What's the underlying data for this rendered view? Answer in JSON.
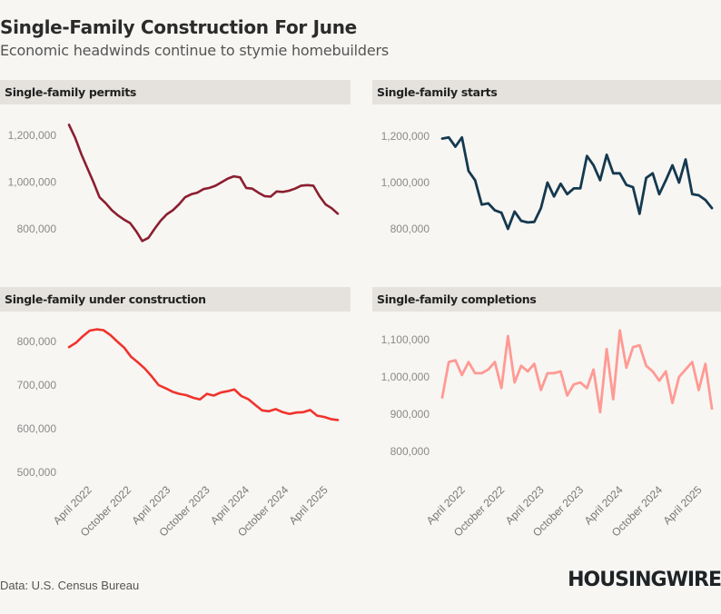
{
  "header": {
    "title": "Single-Family Construction For June",
    "subtitle": "Economic headwinds continue to stymie homebuilders"
  },
  "footer": {
    "source": "Data: U.S. Census Bureau",
    "brand": "HOUSINGWIRE"
  },
  "colors": {
    "background": "#f7f6f3",
    "panel_header": "#e5e2dd",
    "permits": "#8b1e2f",
    "starts": "#15394f",
    "under_construction": "#f0332c",
    "completions": "#ff9a94"
  },
  "chart_data": [
    {
      "id": "permits",
      "type": "line",
      "title": "Single-family permits",
      "xlabel": "",
      "ylabel": "",
      "x_start": "January 2022",
      "x_end": "June 2025",
      "frequency": "monthly",
      "x_tick_labels": [
        "April 2022",
        "October 2022",
        "April 2023",
        "October 2023",
        "April 2024",
        "October 2024",
        "April 2025"
      ],
      "y_tick_labels": [
        "1,200,000",
        "1,000,000",
        "800,000"
      ],
      "yticks": [
        1200000,
        1000000,
        800000
      ],
      "ylim": [
        720000,
        1260000
      ],
      "grid": false,
      "color": "#8b1e2f",
      "values": [
        1245000,
        1190000,
        1120000,
        1060000,
        1000000,
        935000,
        910000,
        880000,
        858000,
        840000,
        825000,
        790000,
        748000,
        762000,
        800000,
        835000,
        862000,
        880000,
        905000,
        935000,
        948000,
        955000,
        970000,
        975000,
        985000,
        1000000,
        1015000,
        1025000,
        1020000,
        975000,
        972000,
        955000,
        940000,
        938000,
        960000,
        958000,
        963000,
        972000,
        985000,
        987000,
        985000,
        940000,
        905000,
        888000,
        865000
      ]
    },
    {
      "id": "starts",
      "type": "line",
      "title": "Single-family starts",
      "xlabel": "",
      "ylabel": "",
      "x_start": "January 2022",
      "x_end": "June 2025",
      "frequency": "monthly",
      "x_tick_labels": [
        "April 2022",
        "October 2022",
        "April 2023",
        "October 2023",
        "April 2024",
        "October 2024",
        "April 2025"
      ],
      "y_tick_labels": [
        "1,200,000",
        "1,000,000",
        "800,000"
      ],
      "yticks": [
        1200000,
        1000000,
        800000
      ],
      "ylim": [
        720000,
        1260000
      ],
      "grid": false,
      "color": "#15394f",
      "values": [
        1190000,
        1195000,
        1155000,
        1195000,
        1050000,
        1010000,
        905000,
        910000,
        880000,
        870000,
        800000,
        875000,
        835000,
        828000,
        830000,
        890000,
        1000000,
        940000,
        995000,
        950000,
        975000,
        975000,
        1115000,
        1075000,
        1010000,
        1120000,
        1040000,
        1040000,
        990000,
        980000,
        865000,
        1020000,
        1040000,
        950000,
        1010000,
        1075000,
        1000000,
        1100000,
        950000,
        945000,
        925000,
        890000
      ]
    },
    {
      "id": "under_construction",
      "type": "line",
      "title": "Single-family under construction",
      "xlabel": "",
      "ylabel": "",
      "x_start": "January 2022",
      "x_end": "June 2025",
      "frequency": "monthly",
      "x_tick_labels": [
        "April 2022",
        "October 2022",
        "April 2023",
        "October 2023",
        "April 2024",
        "October 2024",
        "April 2025"
      ],
      "y_tick_labels": [
        "800,000",
        "700,000",
        "600,000",
        "500,000"
      ],
      "yticks": [
        800000,
        700000,
        600000,
        500000
      ],
      "ylim": [
        490000,
        850000
      ],
      "grid": false,
      "color": "#f0332c",
      "values": [
        787000,
        797000,
        812000,
        825000,
        828000,
        826000,
        815000,
        800000,
        786000,
        765000,
        752000,
        738000,
        720000,
        700000,
        693000,
        685000,
        680000,
        677000,
        671000,
        667000,
        680000,
        676000,
        683000,
        686000,
        690000,
        675000,
        668000,
        655000,
        642000,
        640000,
        645000,
        638000,
        634000,
        637000,
        638000,
        643000,
        630000,
        627000,
        622000,
        620000
      ]
    },
    {
      "id": "completions",
      "type": "line",
      "title": "Single-family completions",
      "xlabel": "",
      "ylabel": "",
      "x_start": "January 2022",
      "x_end": "June 2025",
      "frequency": "monthly",
      "x_tick_labels": [
        "April 2022",
        "October 2022",
        "April 2023",
        "October 2023",
        "April 2024",
        "October 2024",
        "April 2025"
      ],
      "y_tick_labels": [
        "1,100,000",
        "1,000,000",
        "900,000",
        "800,000"
      ],
      "yticks": [
        1100000,
        1000000,
        900000,
        800000
      ],
      "ylim": [
        780000,
        1140000
      ],
      "grid": false,
      "color": "#ff9a94",
      "values": [
        945000,
        1040000,
        1045000,
        1005000,
        1040000,
        1010000,
        1010000,
        1020000,
        1040000,
        970000,
        1110000,
        985000,
        1030000,
        1015000,
        1035000,
        965000,
        1010000,
        1010000,
        1015000,
        950000,
        980000,
        985000,
        970000,
        1020000,
        905000,
        1075000,
        940000,
        1125000,
        1025000,
        1080000,
        1085000,
        1030000,
        1015000,
        990000,
        1015000,
        930000,
        1000000,
        1020000,
        1040000,
        965000,
        1035000,
        915000
      ]
    }
  ]
}
